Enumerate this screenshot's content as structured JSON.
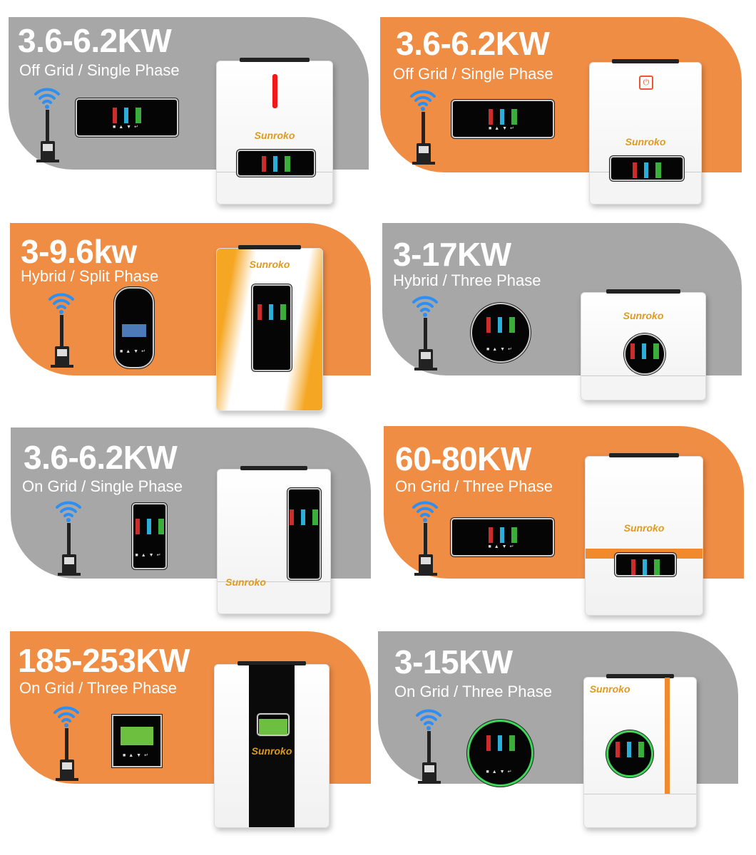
{
  "brand": "Sunroko",
  "colors": {
    "gray": "#a7a7a7",
    "orange": "#ef8d45",
    "brand_text": "#e09a1c",
    "wifi": "#2f8ff0"
  },
  "cards": [
    {
      "title": "3.6-6.2KW",
      "subtitle": "Off Grid / Single Phase",
      "background": "gray",
      "display": "landscape",
      "inverter": "red-indicator"
    },
    {
      "title": "3.6-6.2KW",
      "subtitle": "Off Grid / Single Phase",
      "background": "orange",
      "display": "landscape",
      "inverter": "power-button"
    },
    {
      "title": "3-9.6kw",
      "subtitle": "Hybrid / Split Phase",
      "background": "orange",
      "display": "oval",
      "inverter": "orange-sides"
    },
    {
      "title": "3-17KW",
      "subtitle": "Hybrid / Three Phase",
      "background": "gray",
      "display": "round",
      "inverter": "round-display"
    },
    {
      "title": "3.6-6.2KW",
      "subtitle": "On Grid / Single Phase",
      "background": "gray",
      "display": "portrait",
      "inverter": "vertical-display"
    },
    {
      "title": "60-80KW",
      "subtitle": "On Grid / Three Phase",
      "background": "orange",
      "display": "landscape",
      "inverter": "orange-swoosh"
    },
    {
      "title": "185-253KW",
      "subtitle": "On Grid / Three Phase",
      "background": "orange",
      "display": "square-green",
      "inverter": "black-stripe"
    },
    {
      "title": "3-15KW",
      "subtitle": "On Grid / Three Phase",
      "background": "gray",
      "display": "round-green",
      "inverter": "orange-stripe"
    }
  ]
}
